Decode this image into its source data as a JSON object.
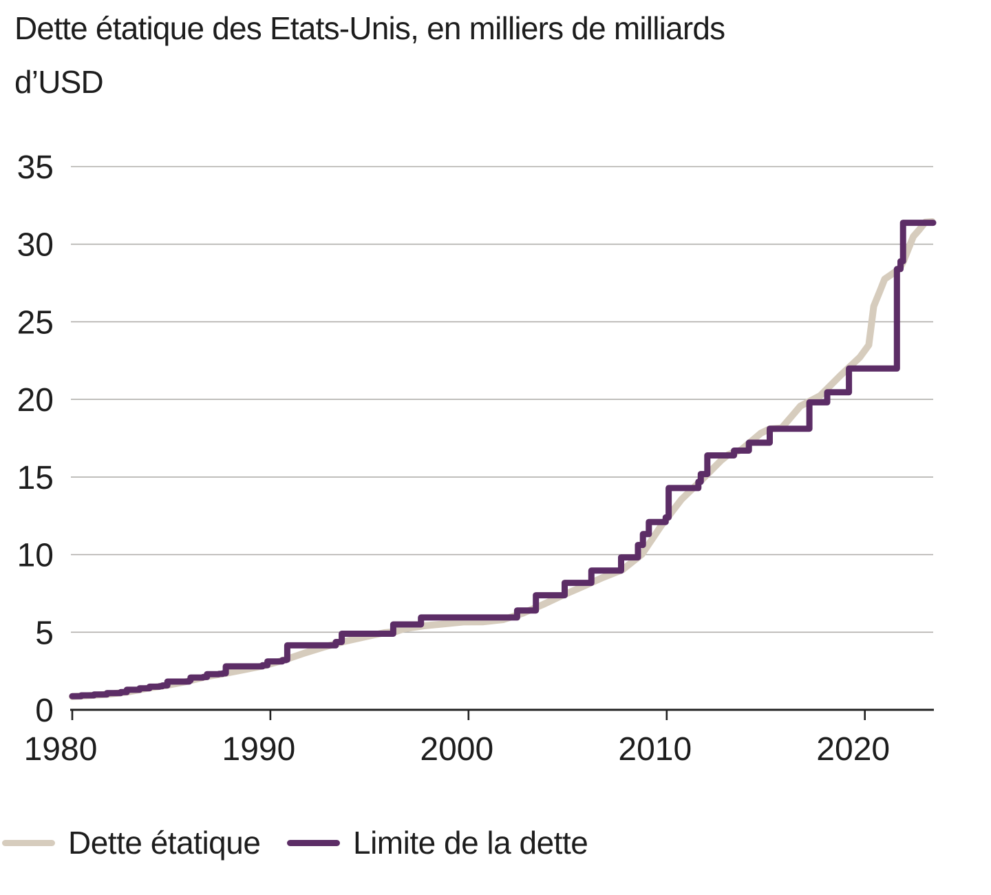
{
  "title": {
    "full": "Dette étatique des Etats-Unis, en milliers de milliards d’USD",
    "lines": [
      "Dette étatique des Etats-Unis, en milliers de milliards",
      "d’USD"
    ]
  },
  "legend": {
    "items": [
      {
        "label": "Dette étatique",
        "color": "#d6ccbd"
      },
      {
        "label": "Limite de la dette",
        "color": "#5c2d66"
      }
    ]
  },
  "colors": {
    "debt_line": "#d6ccbd",
    "limit_line": "#5c2d66",
    "gridline": "#b1afac",
    "axis": "#222222",
    "text": "#1d1d1d"
  },
  "chart_data": {
    "type": "line",
    "title": "Dette étatique des Etats-Unis, en milliers de milliards d’USD",
    "xlabel": "",
    "ylabel": "milliers de milliards d’USD",
    "xlim": [
      1980,
      2023.45
    ],
    "ylim": [
      0,
      35
    ],
    "x_ticks": [
      1980,
      1990,
      2000,
      2010,
      2020
    ],
    "y_ticks": [
      0,
      5,
      10,
      15,
      20,
      25,
      30,
      35
    ],
    "grid": true,
    "legend_position": "bottom",
    "series": [
      {
        "name": "Dette étatique",
        "draw": "line",
        "color": "#d6ccbd",
        "stroke_width": 10,
        "points": [
          [
            1980.0,
            0.85
          ],
          [
            1980.75,
            0.91
          ],
          [
            1981.75,
            1.0
          ],
          [
            1982.75,
            1.14
          ],
          [
            1983.75,
            1.38
          ],
          [
            1984.75,
            1.57
          ],
          [
            1985.75,
            1.82
          ],
          [
            1986.75,
            2.13
          ],
          [
            1987.75,
            2.35
          ],
          [
            1988.75,
            2.6
          ],
          [
            1989.75,
            2.86
          ],
          [
            1990.75,
            3.23
          ],
          [
            1991.75,
            3.67
          ],
          [
            1992.75,
            4.06
          ],
          [
            1993.75,
            4.41
          ],
          [
            1994.75,
            4.69
          ],
          [
            1995.75,
            4.97
          ],
          [
            1996.3,
            5.03
          ],
          [
            1996.75,
            5.22
          ],
          [
            1997.75,
            5.41
          ],
          [
            1998.75,
            5.53
          ],
          [
            1999.75,
            5.66
          ],
          [
            2000.75,
            5.67
          ],
          [
            2001.75,
            5.81
          ],
          [
            2002.75,
            6.23
          ],
          [
            2003.75,
            6.78
          ],
          [
            2004.75,
            7.38
          ],
          [
            2005.75,
            7.93
          ],
          [
            2006.75,
            8.51
          ],
          [
            2007.75,
            9.01
          ],
          [
            2008.75,
            10.02
          ],
          [
            2009.75,
            11.91
          ],
          [
            2010.75,
            13.56
          ],
          [
            2011.75,
            14.79
          ],
          [
            2012.75,
            16.07
          ],
          [
            2013.1,
            16.43
          ],
          [
            2013.75,
            16.74
          ],
          [
            2014.75,
            17.82
          ],
          [
            2015.2,
            18.1
          ],
          [
            2015.8,
            18.15
          ],
          [
            2016.75,
            19.57
          ],
          [
            2017.75,
            20.24
          ],
          [
            2018.75,
            21.52
          ],
          [
            2019.75,
            22.72
          ],
          [
            2020.2,
            23.5
          ],
          [
            2020.45,
            26.0
          ],
          [
            2020.75,
            26.95
          ],
          [
            2021.0,
            27.75
          ],
          [
            2021.4,
            28.1
          ],
          [
            2021.75,
            28.43
          ],
          [
            2021.95,
            28.9
          ],
          [
            2022.45,
            30.5
          ],
          [
            2022.75,
            30.93
          ],
          [
            2023.05,
            31.42
          ],
          [
            2023.4,
            31.45
          ]
        ]
      },
      {
        "name": "Limite de la dette",
        "draw": "step",
        "color": "#5c2d66",
        "stroke_width": 9,
        "points": [
          [
            1980.0,
            0.88
          ],
          [
            1980.45,
            0.93
          ],
          [
            1981.1,
            0.99
          ],
          [
            1981.75,
            1.08
          ],
          [
            1982.45,
            1.14
          ],
          [
            1982.75,
            1.29
          ],
          [
            1983.4,
            1.39
          ],
          [
            1983.9,
            1.49
          ],
          [
            1984.4,
            1.52
          ],
          [
            1984.55,
            1.57
          ],
          [
            1984.8,
            1.82
          ],
          [
            1985.9,
            1.9
          ],
          [
            1985.97,
            2.08
          ],
          [
            1986.6,
            2.11
          ],
          [
            1986.8,
            2.3
          ],
          [
            1987.4,
            2.32
          ],
          [
            1987.6,
            2.35
          ],
          [
            1987.75,
            2.8
          ],
          [
            1989.6,
            2.87
          ],
          [
            1989.85,
            3.12
          ],
          [
            1990.6,
            3.2
          ],
          [
            1990.78,
            3.23
          ],
          [
            1990.85,
            4.15
          ],
          [
            1993.3,
            4.37
          ],
          [
            1993.6,
            4.9
          ],
          [
            1996.2,
            5.5
          ],
          [
            1997.6,
            5.95
          ],
          [
            2002.45,
            6.4
          ],
          [
            2003.4,
            7.38
          ],
          [
            2004.85,
            8.18
          ],
          [
            2006.2,
            8.97
          ],
          [
            2007.7,
            9.82
          ],
          [
            2008.55,
            10.62
          ],
          [
            2008.8,
            11.32
          ],
          [
            2009.1,
            12.1
          ],
          [
            2009.95,
            12.4
          ],
          [
            2010.1,
            14.29
          ],
          [
            2011.6,
            14.69
          ],
          [
            2011.72,
            15.19
          ],
          [
            2012.05,
            16.39
          ],
          [
            2013.4,
            16.7
          ],
          [
            2014.15,
            17.21
          ],
          [
            2015.2,
            18.11
          ],
          [
            2017.2,
            19.81
          ],
          [
            2018.1,
            20.46
          ],
          [
            2019.2,
            21.99
          ],
          [
            2021.62,
            28.4
          ],
          [
            2021.8,
            28.9
          ],
          [
            2021.93,
            31.38
          ]
        ]
      }
    ]
  }
}
